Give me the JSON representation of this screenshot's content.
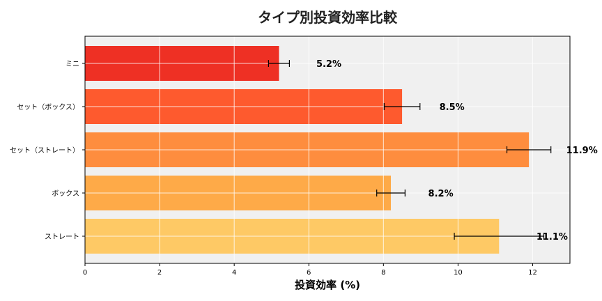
{
  "chart_data": {
    "type": "bar",
    "orientation": "horizontal",
    "title": "タイプ別投資効率比較",
    "xlabel": "投資効率 (%)",
    "ylabel": "",
    "categories": [
      "ミニ",
      "セット（ボックス）",
      "セット（ストレート）",
      "ボックス",
      "ストレート"
    ],
    "values": [
      5.2,
      8.5,
      11.9,
      8.2,
      11.1
    ],
    "errors": [
      0.28,
      0.48,
      0.59,
      0.38,
      1.2
    ],
    "data_labels": [
      "5.2%",
      "8.5%",
      "11.9%",
      "8.2%",
      "11.1%"
    ],
    "colors": [
      "#ee3024",
      "#fe5a2e",
      "#fe8d3e",
      "#feaa48",
      "#fec965"
    ],
    "xlim": [
      0,
      13
    ],
    "xticks": [
      0,
      2,
      4,
      6,
      8,
      10,
      12
    ],
    "grid": true,
    "background": "#f0f0f0"
  }
}
